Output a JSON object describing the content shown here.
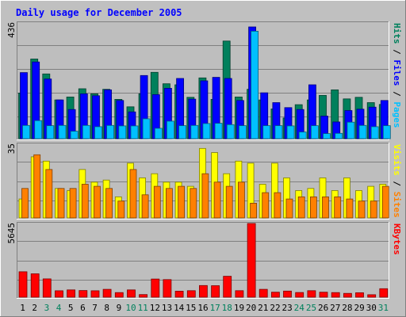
{
  "title": "Daily usage for December 2005",
  "colors": {
    "background": "#C0C0C0",
    "plot_bg": "#BEBEBE",
    "hits": "#00805C",
    "files": "#0000FF",
    "pages": "#00C0FF",
    "visits": "#FFFF00",
    "sites": "#FF8000",
    "kbytes": "#FF0000",
    "title_text": "#0000FF",
    "weekend_label": "#00805C"
  },
  "chart_data": [
    {
      "type": "bar",
      "name": "hits-files-pages",
      "ymax_label": "436",
      "ylim": [
        0,
        436
      ],
      "right_labels": [
        {
          "text": "Pages",
          "color": "#00C0FF"
        },
        {
          "text": " / ",
          "color": "#000000"
        },
        {
          "text": "Files",
          "color": "#0000FF"
        },
        {
          "text": " / ",
          "color": "#000000"
        },
        {
          "text": "Hits",
          "color": "#00805C"
        }
      ],
      "series": [
        {
          "key": "hits",
          "values": [
            172,
            300,
            244,
            146,
            157,
            188,
            169,
            186,
            148,
            120,
            169,
            250,
            207,
            203,
            156,
            229,
            148,
            368,
            157,
            186,
            146,
            112,
            78,
            128,
            146,
            163,
            184,
            150,
            156,
            136,
            129
          ]
        },
        {
          "key": "files",
          "values": [
            249,
            289,
            225,
            146,
            110,
            169,
            162,
            184,
            144,
            101,
            238,
            166,
            190,
            227,
            149,
            218,
            231,
            227,
            144,
            421,
            173,
            136,
            117,
            110,
            203,
            85,
            63,
            106,
            111,
            119,
            144
          ]
        },
        {
          "key": "pages",
          "values": [
            50,
            68,
            49,
            50,
            28,
            50,
            45,
            50,
            48,
            48,
            75,
            39,
            66,
            49,
            50,
            57,
            58,
            53,
            49,
            405,
            49,
            49,
            48,
            25,
            49,
            19,
            20,
            62,
            50,
            45,
            49
          ]
        }
      ]
    },
    {
      "type": "bar",
      "name": "visits-sites",
      "ymax_label": "35",
      "ylim": [
        0,
        35
      ],
      "right_labels": [
        {
          "text": "Sites",
          "color": "#FF8000"
        },
        {
          "text": " / ",
          "color": "#000000"
        },
        {
          "text": "Visits",
          "color": "#FFFF00"
        }
      ],
      "series": [
        {
          "key": "visits",
          "values": [
            9,
            29,
            27,
            14,
            13,
            23,
            17,
            18,
            10,
            26,
            19,
            21,
            17,
            17,
            15,
            33,
            31,
            21,
            27,
            26,
            16,
            26,
            19,
            13,
            14,
            19,
            13,
            19,
            13,
            15,
            16
          ]
        },
        {
          "key": "sites",
          "values": [
            14,
            30,
            23,
            14,
            14,
            16,
            15,
            14,
            8,
            23,
            11,
            15,
            14,
            15,
            14,
            21,
            17,
            15,
            17,
            7,
            12,
            12,
            9,
            10,
            10,
            10,
            10,
            9,
            8,
            8,
            15
          ]
        }
      ]
    },
    {
      "type": "bar",
      "name": "kbytes",
      "ymax_label": "5645",
      "ylim": [
        0,
        5645
      ],
      "right_labels": [
        {
          "text": "KBytes",
          "color": "#FF0000"
        }
      ],
      "series": [
        {
          "key": "kbytes",
          "values": [
            1950,
            1790,
            1400,
            490,
            560,
            510,
            490,
            600,
            350,
            560,
            200,
            1390,
            1350,
            460,
            500,
            890,
            880,
            1600,
            500,
            5645,
            600,
            380,
            470,
            360,
            500,
            380,
            350,
            290,
            340,
            190,
            650
          ]
        }
      ]
    }
  ],
  "days": [
    "1",
    "2",
    "3",
    "4",
    "5",
    "6",
    "7",
    "8",
    "9",
    "10",
    "11",
    "12",
    "13",
    "14",
    "15",
    "16",
    "17",
    "18",
    "19",
    "20",
    "21",
    "22",
    "23",
    "24",
    "25",
    "26",
    "27",
    "28",
    "29",
    "30",
    "31"
  ],
  "weekend_days": [
    "3",
    "4",
    "10",
    "11",
    "17",
    "18",
    "24",
    "25",
    "31"
  ]
}
